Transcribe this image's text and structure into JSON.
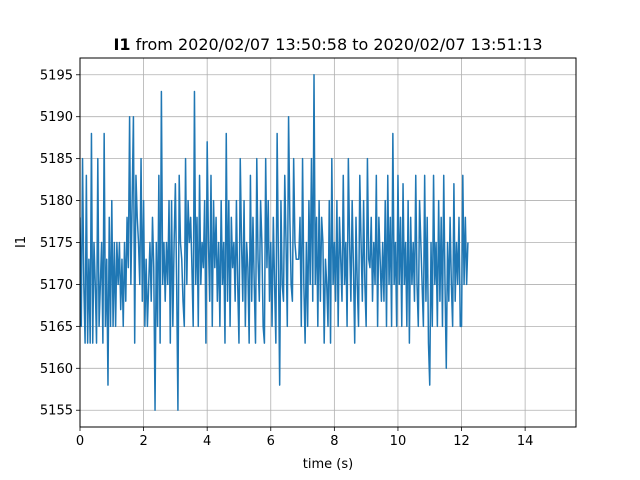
{
  "chart_data": {
    "type": "line",
    "title_bold": "I1",
    "title_rest": " from 2020/02/07 13:50:58 to 2020/02/07 13:51:13",
    "xlabel": "time (s)",
    "ylabel": "I1",
    "xlim": [
      0,
      15.6
    ],
    "ylim": [
      5153,
      5197
    ],
    "xticks": [
      0,
      2,
      4,
      6,
      8,
      10,
      12,
      14
    ],
    "yticks": [
      5155,
      5160,
      5165,
      5170,
      5175,
      5180,
      5185,
      5190,
      5195
    ],
    "grid": true,
    "line_color": "#1f77b4",
    "series": [
      {
        "dt": 0.04,
        "values": [
          5178,
          5165,
          5185,
          5170,
          5163,
          5183,
          5163,
          5173,
          5163,
          5188,
          5163,
          5175,
          5170,
          5163,
          5185,
          5165,
          5170,
          5175,
          5163,
          5188,
          5165,
          5173,
          5158,
          5178,
          5165,
          5180,
          5165,
          5175,
          5165,
          5175,
          5170,
          5175,
          5167,
          5173,
          5165,
          5175,
          5168,
          5178,
          5172,
          5190,
          5170,
          5180,
          5190,
          5163,
          5183,
          5178,
          5175,
          5170,
          5185,
          5168,
          5180,
          5165,
          5173,
          5165,
          5170,
          5175,
          5168,
          5178,
          5172,
          5155,
          5175,
          5165,
          5183,
          5163,
          5193,
          5170,
          5175,
          5168,
          5175,
          5170,
          5180,
          5163,
          5180,
          5165,
          5175,
          5182,
          5170,
          5155,
          5183,
          5175,
          5173,
          5168,
          5165,
          5185,
          5170,
          5180,
          5175,
          5178,
          5172,
          5165,
          5193,
          5170,
          5178,
          5165,
          5183,
          5170,
          5175,
          5172,
          5180,
          5163,
          5187,
          5175,
          5168,
          5183,
          5165,
          5180,
          5172,
          5178,
          5168,
          5175,
          5165,
          5180,
          5170,
          5175,
          5163,
          5188,
          5168,
          5180,
          5165,
          5178,
          5172,
          5175,
          5168,
          5180,
          5170,
          5163,
          5185,
          5175,
          5168,
          5180,
          5165,
          5175,
          5172,
          5163,
          5183,
          5168,
          5178,
          5170,
          5163,
          5185,
          5173,
          5168,
          5180,
          5175,
          5165,
          5163,
          5185,
          5172,
          5180,
          5168,
          5175,
          5165,
          5178,
          5170,
          5163,
          5188,
          5173,
          5158,
          5180,
          5170,
          5168,
          5183,
          5175,
          5165,
          5190,
          5178,
          5170,
          5168,
          5185,
          5175,
          5173,
          5173,
          5173,
          5178,
          5165,
          5185,
          5170,
          5163,
          5175,
          5165,
          5180,
          5170,
          5185,
          5168,
          5195,
          5170,
          5178,
          5165,
          5180,
          5168,
          5178,
          5175,
          5163,
          5173,
          5170,
          5165,
          5180,
          5163,
          5185,
          5170,
          5175,
          5168,
          5180,
          5165,
          5178,
          5173,
          5168,
          5183,
          5170,
          5175,
          5165,
          5185,
          5175,
          5168,
          5180,
          5172,
          5163,
          5178,
          5170,
          5165,
          5183,
          5175,
          5168,
          5180,
          5170,
          5165,
          5185,
          5173,
          5172,
          5178,
          5168,
          5175,
          5170,
          5183,
          5165,
          5178,
          5173,
          5168,
          5175,
          5168,
          5180,
          5165,
          5183,
          5170,
          5178,
          5165,
          5188,
          5170,
          5175,
          5165,
          5183,
          5170,
          5178,
          5165,
          5182,
          5170,
          5175,
          5165,
          5180,
          5163,
          5178,
          5170,
          5175,
          5168,
          5183,
          5170,
          5165,
          5180,
          5175,
          5170,
          5165,
          5183,
          5168,
          5178,
          5163,
          5158,
          5175,
          5165,
          5183,
          5170,
          5175,
          5165,
          5180,
          5168,
          5178,
          5165,
          5183,
          5170,
          5160,
          5175,
          5168,
          5178,
          5170,
          5165,
          5182,
          5168,
          5175,
          5170,
          5178,
          5165,
          5165,
          5183,
          5170,
          5178,
          5170,
          5175
        ]
      }
    ]
  }
}
